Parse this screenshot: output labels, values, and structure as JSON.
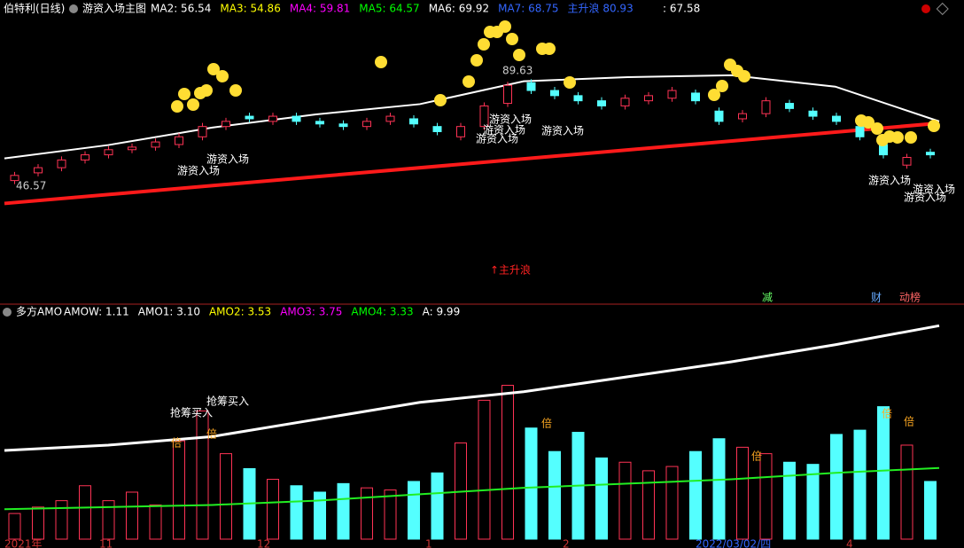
{
  "header": {
    "stock": "伯特利(日线)",
    "indicator": "游资入场主图",
    "readout": ": 67.58"
  },
  "chart_data": [
    {
      "type": "candlestick",
      "legend": [
        {
          "text": "MA2: 56.54",
          "color": "#ffffff"
        },
        {
          "text": "MA3: 54.86",
          "color": "#ffff00"
        },
        {
          "text": "MA4: 59.81",
          "color": "#ff00ff"
        },
        {
          "text": "MA5: 64.57",
          "color": "#00ff00"
        },
        {
          "text": "MA6: 69.92",
          "color": "#ffffff"
        },
        {
          "text": "MA7: 68.75",
          "color": "#3366ff"
        },
        {
          "text": "主升浪  80.93",
          "color": "#3366ff"
        }
      ],
      "open": [
        47,
        50,
        52,
        55,
        57,
        59,
        60,
        61,
        64,
        68,
        72,
        70,
        72,
        70,
        69,
        68,
        70,
        71,
        68,
        64,
        68,
        77,
        85,
        82,
        80,
        78,
        76,
        78,
        79,
        81,
        74,
        71,
        73,
        77,
        74,
        72,
        68,
        61,
        53,
        58
      ],
      "close": [
        49,
        52,
        55,
        57,
        59,
        60,
        62,
        64,
        68,
        70,
        71,
        72,
        70,
        69,
        68,
        70,
        72,
        69,
        66,
        68,
        76,
        84,
        82,
        80,
        78,
        76,
        79,
        80,
        82,
        78,
        70,
        73,
        78,
        75,
        72,
        70,
        64,
        57,
        56,
        57
      ],
      "up_color": "#ff3355",
      "down_color": "#54ffff",
      "upper_band": [
        55.6,
        60.8,
        67.6,
        72.7,
        76.7,
        85.6,
        87.2,
        87.9,
        83.5,
        70
      ],
      "trend_line": [
        38.1,
        69.3
      ],
      "trend_color": "#ff1a1a",
      "ylim": [
        0,
        112
      ],
      "low_label": "46.57",
      "high_label": "89.63",
      "annotations": [
        "游资入场",
        "游资入场",
        "游资入场",
        "游资入场",
        "游资入场",
        "游资入场",
        "游资入场",
        "游资入场",
        "游资入场"
      ],
      "wave_label": "↑主升浪",
      "signals": [
        {
          "text": "减",
          "color": "#66ff66"
        },
        {
          "text": "财",
          "color": "#66aaff"
        },
        {
          "text": "动榜",
          "color": "#ff6666"
        }
      ]
    },
    {
      "type": "bar",
      "title": "多方AMO",
      "legend": [
        {
          "text": "AMOW: 1.11",
          "color": "#ffffff"
        },
        {
          "text": "AMO1: 3.10",
          "color": "#ffffff"
        },
        {
          "text": "AMO2: 3.53",
          "color": "#ffff00"
        },
        {
          "text": "AMO3: 3.75",
          "color": "#ff00ff"
        },
        {
          "text": "AMO4: 3.33",
          "color": "#00ff00"
        },
        {
          "text": "A: 9.99",
          "color": "#ffffff"
        }
      ],
      "values": [
        1.2,
        1.5,
        1.8,
        2.5,
        1.8,
        2.2,
        1.6,
        4.6,
        6.0,
        4.0,
        3.3,
        2.8,
        2.5,
        2.2,
        2.6,
        2.4,
        2.3,
        2.7,
        3.1,
        4.5,
        6.5,
        7.2,
        5.2,
        4.1,
        5.0,
        3.8,
        3.6,
        3.2,
        3.4,
        4.1,
        4.7,
        4.3,
        4.0,
        3.6,
        3.5,
        4.9,
        5.1,
        6.2,
        4.4,
        2.7
      ],
      "a_line": [
        4.15,
        4.4,
        4.8,
        5.6,
        6.4,
        6.9,
        7.6,
        8.3,
        9.1,
        9.99
      ],
      "amo4_line": [
        1.4,
        1.5,
        1.6,
        1.8,
        2.1,
        2.4,
        2.6,
        2.8,
        3.1,
        3.33
      ],
      "ylim": [
        0,
        10.5
      ],
      "annotations": [
        "抢筹买入",
        "抢筹买入",
        "倍",
        "倍",
        "倍",
        "倍",
        "倍",
        "倍"
      ],
      "x_labels": [
        "2021年",
        "11",
        "12",
        "1",
        "2",
        "2022/03/02/四",
        "4"
      ]
    }
  ]
}
